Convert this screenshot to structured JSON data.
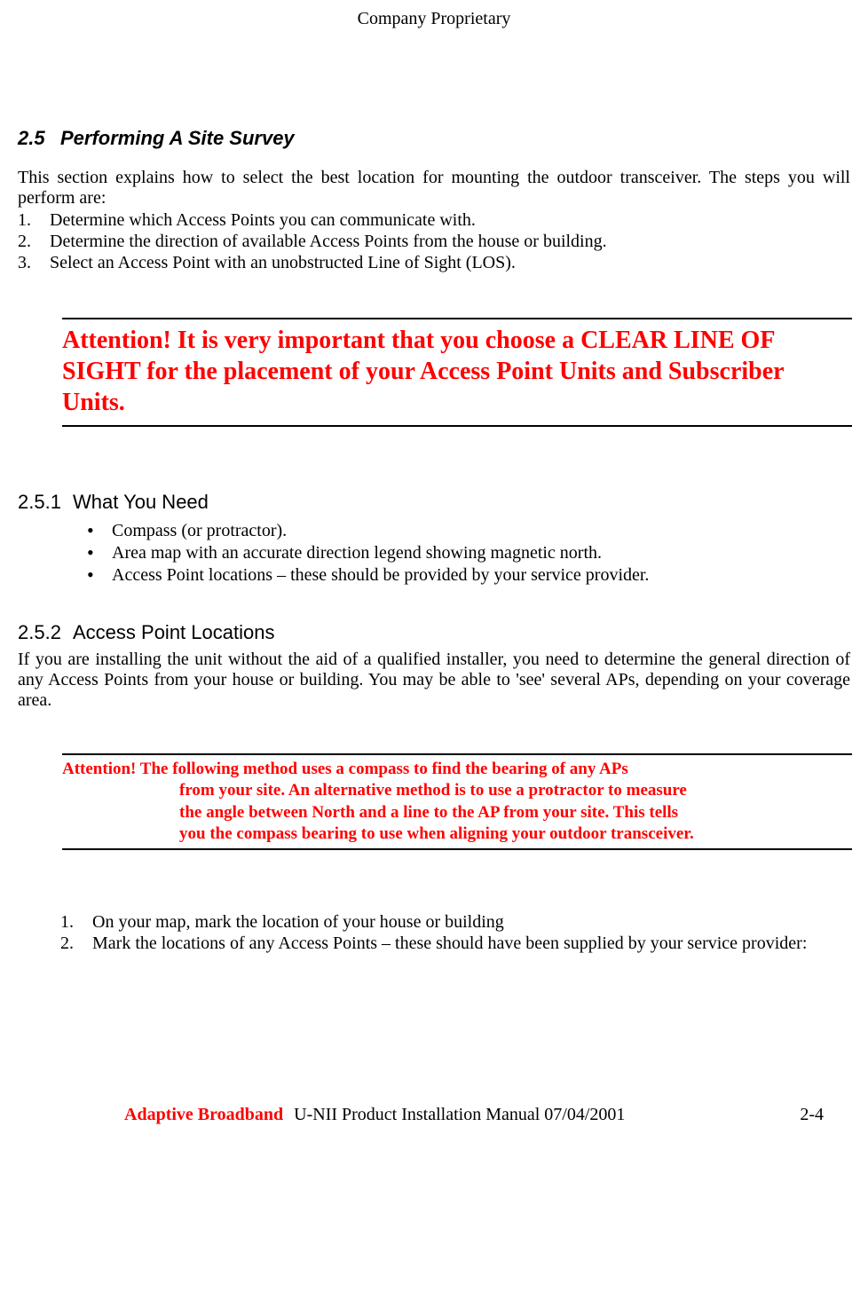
{
  "header": {
    "classification": "Company Proprietary"
  },
  "section": {
    "number": "2.5",
    "title": "Performing A Site Survey",
    "intro": "This section explains how to select the best location for mounting the outdoor transceiver.  The steps you will perform are:",
    "steps": [
      "Determine which Access Points you can communicate with.",
      "Determine the direction of available Access Points from the house or building.",
      "Select an Access Point with an unobstructed Line of Sight (LOS)."
    ]
  },
  "attention1": {
    "color": "#ff0000",
    "text": "Attention! It is very important that you choose a CLEAR LINE OF SIGHT for the placement of your Access Point Units and Subscriber Units."
  },
  "sub1": {
    "number": "2.5.1",
    "title": "What  You Need",
    "bullets": [
      "Compass (or protractor).",
      "Area map with an accurate direction legend showing magnetic north.",
      "Access Point locations – these should be provided by your service provider."
    ]
  },
  "sub2": {
    "number": "2.5.2",
    "title": "Access Point Locations",
    "para": "If you are installing the unit without the aid of a qualified installer, you need to determine the general direction of any Access Points from your house or building.  You may be able to 'see' several APs, depending on your coverage area."
  },
  "attention2": {
    "color": "#ff0000",
    "line1": "Attention!  The following method uses a compass to find the bearing of any APs",
    "line2": "from your site.  An alternative method is to use a protractor to measure",
    "line3": "the angle between North and a line to the AP from your site.  This tells",
    "line4": "you the compass bearing to use when aligning your outdoor transceiver."
  },
  "procedure": {
    "items": [
      "On your map, mark the location of your house or building",
      "Mark the locations of any Access Points – these should have been supplied by your service provider:"
    ]
  },
  "footer": {
    "brand": "Adaptive Broadband",
    "title": "U-NII Product Installation Manual  07/04/2001",
    "page": "2-4",
    "brand_color": "#ff0000"
  }
}
